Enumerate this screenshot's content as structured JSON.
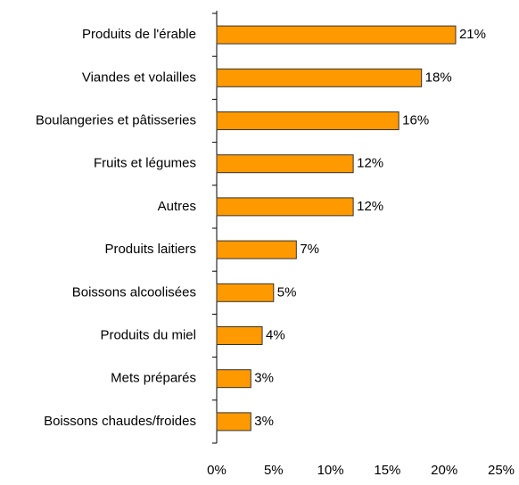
{
  "chart_data": {
    "type": "bar",
    "orientation": "horizontal",
    "categories": [
      "Produits de l'érable",
      "Viandes et volailles",
      "Boulangeries et pâtisseries",
      "Fruits et légumes",
      "Autres",
      "Produits laitiers",
      "Boissons alcoolisées",
      "Produits du miel",
      "Mets préparés",
      "Boissons chaudes/froides"
    ],
    "values": [
      21,
      18,
      16,
      12,
      12,
      7,
      5,
      4,
      3,
      3
    ],
    "value_labels": [
      "21%",
      "18%",
      "16%",
      "12%",
      "12%",
      "7%",
      "5%",
      "4%",
      "3%",
      "3%"
    ],
    "color": "#ff9900",
    "xlim": [
      0,
      25
    ],
    "xticks": [
      {
        "value": 0,
        "label": "0%"
      },
      {
        "value": 5,
        "label": "5%"
      },
      {
        "value": 10,
        "label": "10%"
      },
      {
        "value": 15,
        "label": "15%"
      },
      {
        "value": 20,
        "label": "20%"
      },
      {
        "value": 25,
        "label": "25%"
      }
    ],
    "grid": false
  }
}
